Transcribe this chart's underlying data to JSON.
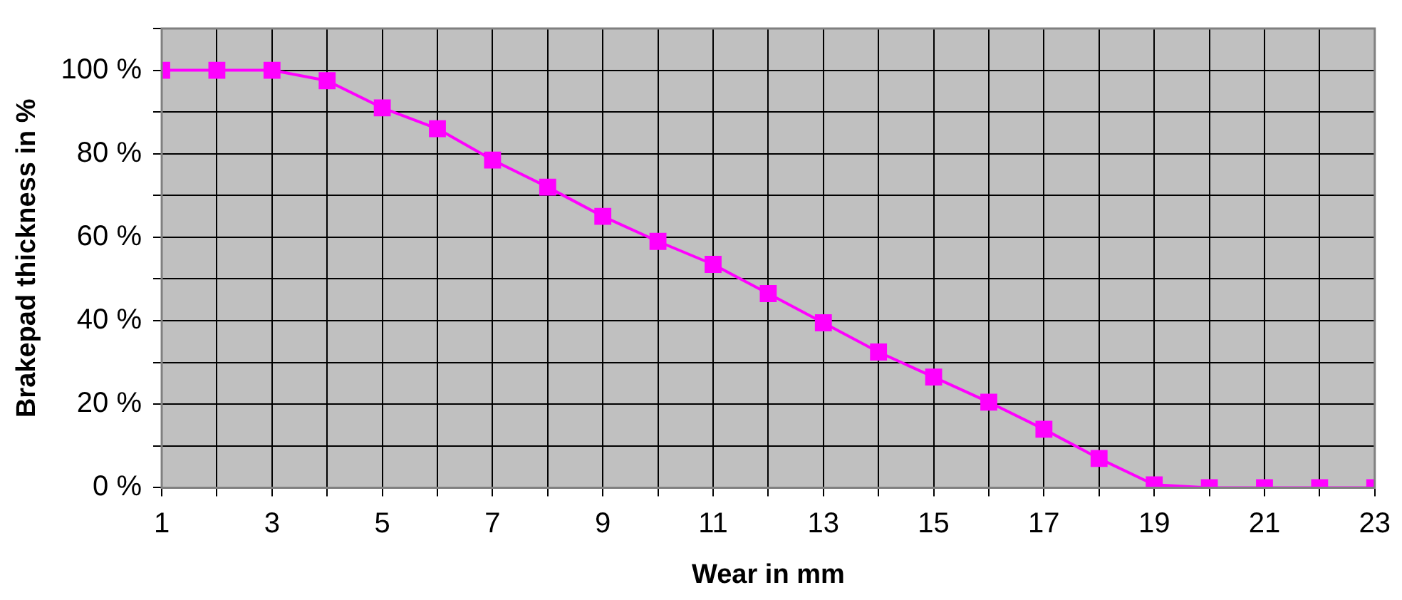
{
  "chart_data": {
    "type": "line",
    "xlabel": "Wear in mm",
    "ylabel": "Brakepad thickness in %",
    "x": [
      1,
      2,
      3,
      4,
      5,
      6,
      7,
      8,
      9,
      10,
      11,
      12,
      13,
      14,
      15,
      16,
      17,
      18,
      19,
      20,
      21,
      22,
      23
    ],
    "series": [
      {
        "color": "#ff00ff",
        "values": [
          100,
          100,
          100,
          97.5,
          91,
          86,
          78.5,
          72,
          65,
          59,
          53.5,
          46.5,
          39.5,
          32.5,
          26.5,
          20.5,
          14,
          7,
          0.7,
          0,
          0,
          0,
          0
        ]
      }
    ],
    "xlim": [
      1,
      23
    ],
    "xticks": [
      1,
      {
        "value": 2,
        "label": null
      },
      3,
      {
        "value": 4,
        "label": null
      },
      5,
      {
        "value": 6,
        "label": null
      },
      7,
      {
        "value": 8,
        "label": null
      },
      9,
      {
        "value": 10,
        "label": null
      },
      11,
      {
        "value": 12,
        "label": null
      },
      13,
      {
        "value": 14,
        "label": null
      },
      15,
      {
        "value": 16,
        "label": null
      },
      17,
      {
        "value": 18,
        "label": null
      },
      19,
      {
        "value": 20,
        "label": null
      },
      21,
      {
        "value": 22,
        "label": null
      },
      23
    ],
    "ylim": [
      0,
      110
    ],
    "yticks": [
      {
        "value": 0,
        "label": "0 %"
      },
      {
        "value": 10,
        "label": null
      },
      {
        "value": 20,
        "label": "20 %"
      },
      {
        "value": 30,
        "label": null
      },
      {
        "value": 40,
        "label": "40 %"
      },
      {
        "value": 50,
        "label": null
      },
      {
        "value": 60,
        "label": "60 %"
      },
      {
        "value": 70,
        "label": null
      },
      {
        "value": 80,
        "label": "80 %"
      },
      {
        "value": 90,
        "label": null
      },
      {
        "value": 100,
        "label": "100 %"
      },
      {
        "value": 110,
        "label": null
      }
    ],
    "grid": true,
    "legend": false,
    "marker": "square",
    "line_style": "solid"
  }
}
